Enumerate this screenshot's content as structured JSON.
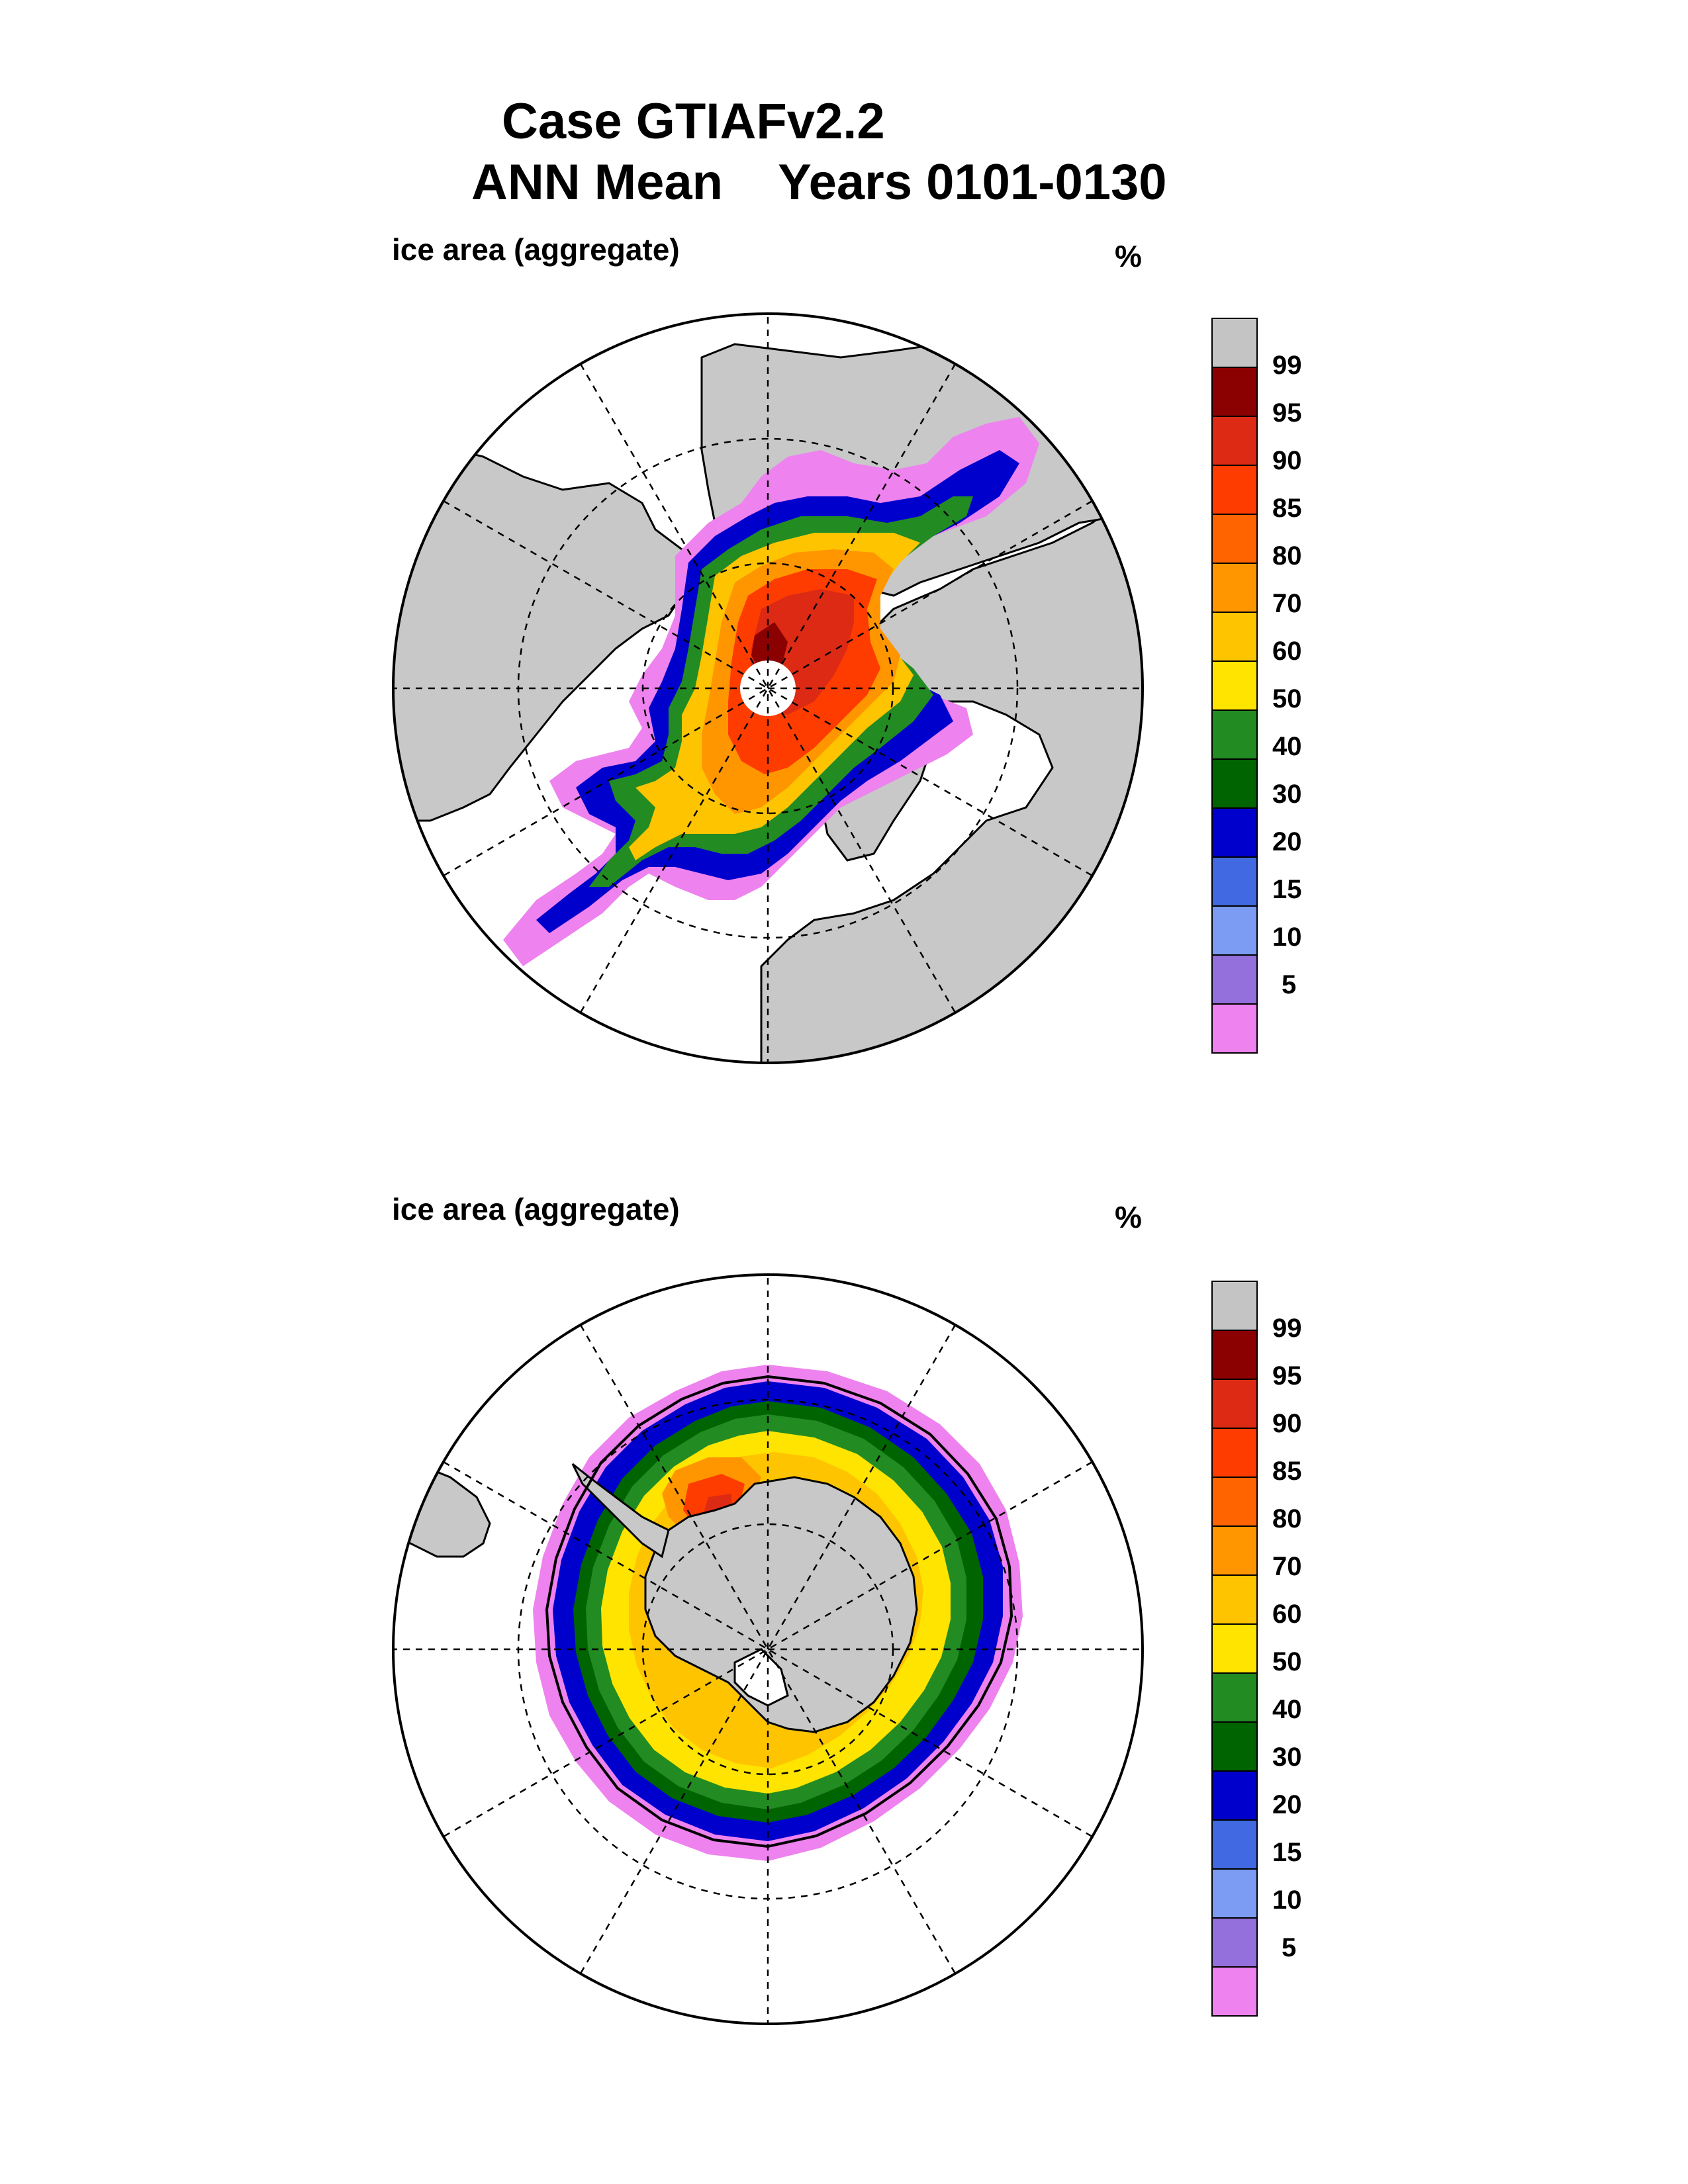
{
  "title": {
    "line1": "Case GTIAFv2.2",
    "line2": "ANN Mean    Years 0101-0130"
  },
  "panels": [
    {
      "id": "north",
      "label": "ice area  (aggregate)",
      "unit": "%",
      "hemisphere": "Arctic"
    },
    {
      "id": "south",
      "label": "ice area  (aggregate)",
      "unit": "%",
      "hemisphere": "Antarctic"
    }
  ],
  "colorbar": {
    "levels": [
      "99",
      "95",
      "90",
      "85",
      "80",
      "70",
      "60",
      "50",
      "40",
      "30",
      "20",
      "15",
      "10",
      "5"
    ],
    "colors": [
      "#c4c4c4",
      "#8b0000",
      "#dd2a14",
      "#ff3c00",
      "#ff6400",
      "#ff9600",
      "#ffc400",
      "#ffe400",
      "#228b22",
      "#006400",
      "#0000cd",
      "#4169e1",
      "#7b9cf2",
      "#9370db",
      "#ee82ee"
    ]
  },
  "map_style": {
    "land": "#c8c8c8",
    "ocean": "#ffffff",
    "contour": "#000000"
  }
}
